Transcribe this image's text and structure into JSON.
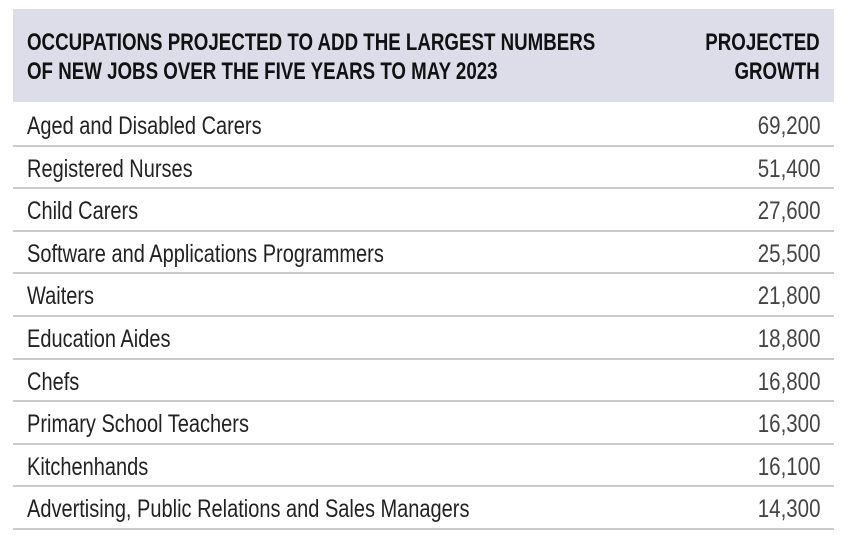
{
  "table": {
    "header": {
      "title_line1": "OCCUPATIONS PROJECTED TO ADD THE LARGEST NUMBERS",
      "title_line2": "OF NEW JOBS OVER THE FIVE YEARS TO MAY 2023",
      "value_line1": "PROJECTED",
      "value_line2": "GROWTH"
    },
    "rows": [
      {
        "occupation": "Aged and Disabled Carers",
        "growth": "69,200"
      },
      {
        "occupation": "Registered Nurses",
        "growth": "51,400"
      },
      {
        "occupation": "Child Carers",
        "growth": "27,600"
      },
      {
        "occupation": "Software and Applications Programmers",
        "growth": "25,500"
      },
      {
        "occupation": "Waiters",
        "growth": "21,800"
      },
      {
        "occupation": "Education Aides",
        "growth": "18,800"
      },
      {
        "occupation": "Chefs",
        "growth": "16,800"
      },
      {
        "occupation": "Primary School Teachers",
        "growth": "16,300"
      },
      {
        "occupation": "Kitchenhands",
        "growth": "16,100"
      },
      {
        "occupation": "Advertising, Public Relations and Sales Managers",
        "growth": "14,300"
      }
    ]
  },
  "colors": {
    "header_bg": "#dcdde8",
    "divider": "#cacaca",
    "text": "#222222"
  }
}
